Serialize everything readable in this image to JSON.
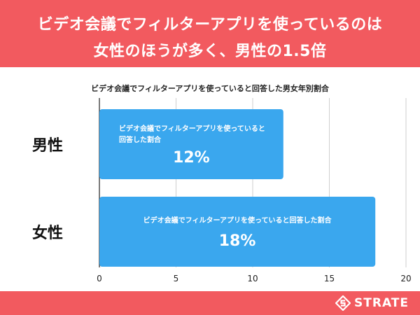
{
  "header": {
    "title_line1": "ビデオ会議でフィルターアプリを使っているのは",
    "title_line2": "女性のほうが多く、男性の1.5倍"
  },
  "chart_data": {
    "type": "bar",
    "orientation": "horizontal",
    "title": "ビデオ会議でフィルターアプリを使っていると回答した男女年別割合",
    "categories": [
      "男性",
      "女性"
    ],
    "series": [
      {
        "name": "ビデオ会議でフィルターアプリを使っていると回答した割合",
        "values": [
          12,
          18
        ],
        "labels": [
          "12%",
          "18%"
        ],
        "label_lines": [
          [
            "ビデオ会議でフィルターアプリを使っていると",
            "回答した割合"
          ],
          [
            "ビデオ会議でフィルターアプリを使っていると回答した割合"
          ]
        ]
      }
    ],
    "xlim": [
      0,
      20
    ],
    "xticks": [
      0,
      5,
      10,
      15,
      20
    ],
    "grid": true,
    "colors": {
      "bar": "#3aa7ee",
      "grid": "#cfcfcf",
      "axis": "#222222"
    }
  },
  "footer": {
    "logo_text": "STRATE"
  },
  "colors": {
    "header_bg": "#f25a5f",
    "footer_bg": "#f25a5f"
  }
}
